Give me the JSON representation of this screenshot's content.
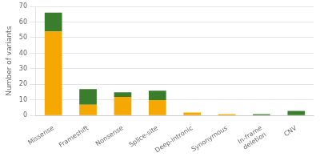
{
  "chart_data": {
    "type": "bar",
    "categories": [
      "Missense",
      "Frameshift",
      "Nonsense",
      "Splice-site",
      "Deep-intronic",
      "Synonymous",
      "In-frame\ndeletion",
      "CNV"
    ],
    "series": [
      {
        "color": "#F5A800",
        "values": [
          54,
          7,
          12,
          10,
          2,
          1,
          0,
          0
        ]
      },
      {
        "color": "#3A7D2C",
        "values": [
          12,
          10,
          3,
          6,
          0,
          0,
          1,
          3
        ]
      }
    ],
    "stacked": true,
    "ylabel": "Number of variants",
    "ylim": [
      0,
      70
    ],
    "yticks": [
      0,
      10,
      20,
      30,
      40,
      50,
      60,
      70
    ],
    "grid": true
  }
}
